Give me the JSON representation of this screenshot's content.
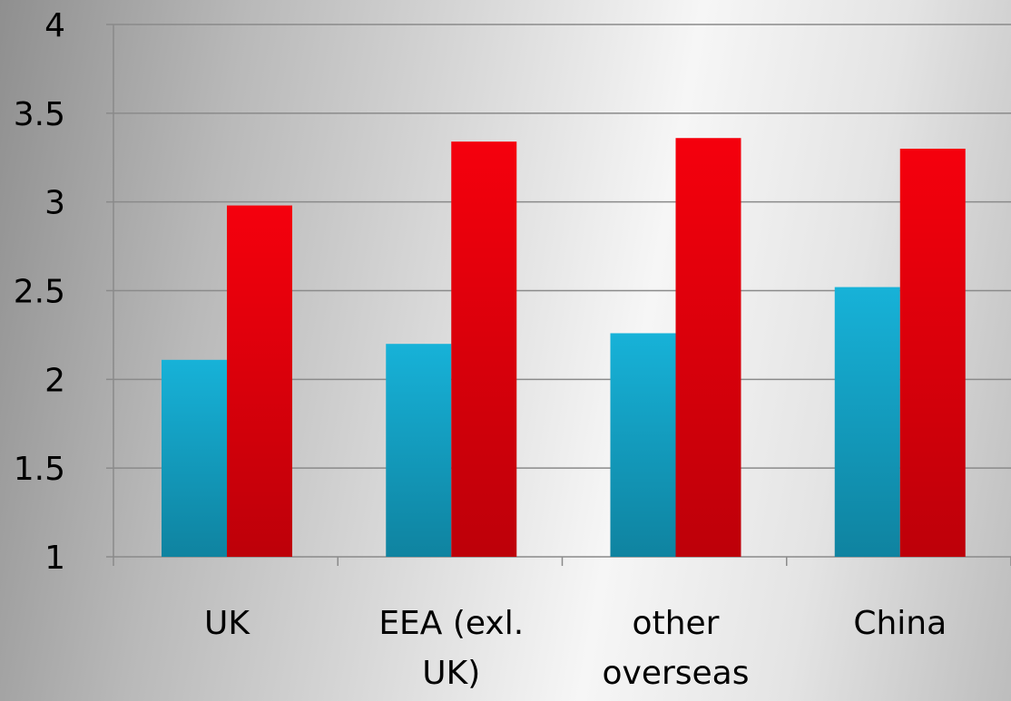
{
  "chart_data": {
    "type": "bar",
    "categories": [
      [
        "UK"
      ],
      [
        "EEA (exl.",
        "UK)"
      ],
      [
        "other",
        "overseas"
      ],
      [
        "China"
      ]
    ],
    "series": [
      {
        "values": [
          2.11,
          2.2,
          2.26,
          2.52
        ]
      },
      {
        "values": [
          2.98,
          3.34,
          3.36,
          3.3
        ]
      }
    ],
    "colors": [
      "#14abd0",
      "#e8000c"
    ],
    "ylim": [
      1,
      4
    ],
    "yticks": [
      "1",
      "1.5",
      "2",
      "2.5",
      "3",
      "3.5",
      "4"
    ],
    "grid": true,
    "title": "",
    "xlabel": "",
    "ylabel": ""
  }
}
